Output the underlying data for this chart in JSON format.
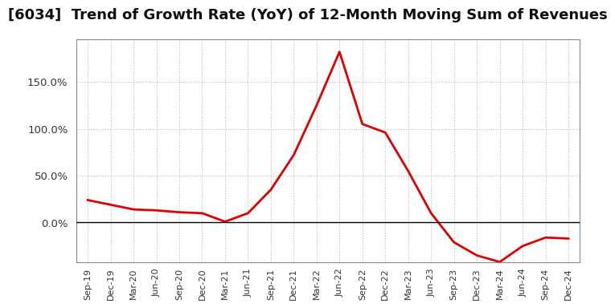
{
  "title": "[6034]  Trend of Growth Rate (YoY) of 12-Month Moving Sum of Revenues",
  "title_fontsize": 13,
  "line_color": "#dd0000",
  "line_width": 2.0,
  "background_color": "#ffffff",
  "plot_bg_color": "#ffffff",
  "x_labels": [
    "Sep-19",
    "Dec-19",
    "Mar-20",
    "Jun-20",
    "Sep-20",
    "Dec-20",
    "Mar-21",
    "Jun-21",
    "Sep-21",
    "Dec-21",
    "Mar-22",
    "Jun-22",
    "Sep-22",
    "Dec-22",
    "Mar-23",
    "Jun-23",
    "Sep-23",
    "Dec-23",
    "Mar-24",
    "Jun-24",
    "Sep-24",
    "Dec-24"
  ],
  "y_values": [
    0.24,
    0.19,
    0.14,
    0.13,
    0.11,
    0.1,
    0.01,
    0.1,
    0.35,
    0.72,
    1.25,
    1.82,
    1.05,
    0.96,
    0.55,
    0.1,
    -0.21,
    -0.35,
    -0.42,
    -0.25,
    -0.16,
    -0.17
  ],
  "ylim": [
    -0.42,
    1.95
  ],
  "yticks": [
    0.0,
    0.5,
    1.0,
    1.5
  ],
  "ytick_labels": [
    "0.0%",
    "50.0%",
    "100.0%",
    "150.0%"
  ],
  "grid_color": "#bbbbbb",
  "grid_style": ":"
}
